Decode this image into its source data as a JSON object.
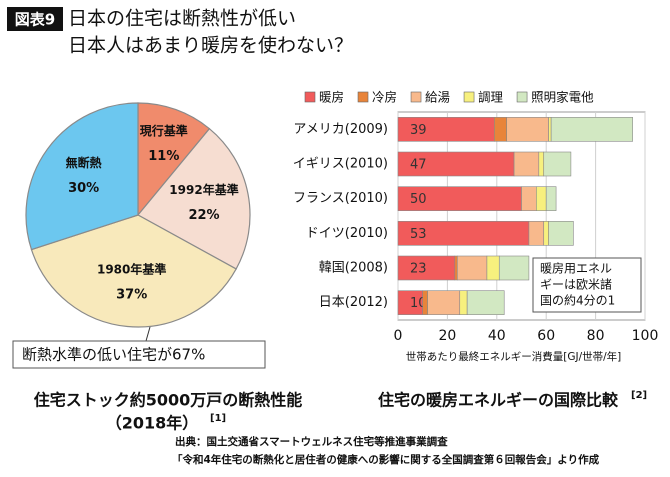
{
  "header": {
    "badge": "図表9",
    "title_lines": [
      "日本の住宅は断熱性が低い",
      "日本人はあまり暖房を使わない？"
    ]
  },
  "chart_data": [
    {
      "type": "pie",
      "categories": [
        "現行基準",
        "1992年基準",
        "1980年基準",
        "無断熱"
      ],
      "values": [
        11,
        22,
        37,
        30
      ],
      "value_labels": [
        "11%",
        "22%",
        "37%",
        "30%"
      ],
      "colors": [
        "#f08b6c",
        "#f6ddd1",
        "#f8e9bb",
        "#6cc7ef"
      ],
      "annotation": "断熱水準の低い住宅が67%",
      "caption": "住宅ストック約5000万戸の断熱性能",
      "caption_sub": "（2018年）",
      "reference": "[1]"
    },
    {
      "type": "bar",
      "orientation": "horizontal",
      "stacked": true,
      "categories": [
        "アメリカ(2009)",
        "イギリス(2010)",
        "フランス(2010)",
        "ドイツ(2010)",
        "韓国(2008)",
        "日本(2012)"
      ],
      "series": [
        {
          "name": "暖房",
          "color": "#f15b5b",
          "values": [
            39,
            47,
            50,
            53,
            23,
            10
          ]
        },
        {
          "name": "冷房",
          "color": "#e8843a",
          "values": [
            5,
            0,
            0,
            0,
            1,
            2
          ]
        },
        {
          "name": "給湯",
          "color": "#f8b98c",
          "values": [
            17,
            10,
            6,
            6,
            12,
            13
          ]
        },
        {
          "name": "調理",
          "color": "#f7f07e",
          "values": [
            1,
            2,
            4,
            2,
            5,
            3
          ]
        },
        {
          "name": "照明家電他",
          "color": "#d2e8c2",
          "values": [
            33,
            11,
            4,
            10,
            12,
            15
          ]
        }
      ],
      "xlim": [
        0,
        100
      ],
      "xticks": [
        0,
        20,
        40,
        60,
        80,
        100
      ],
      "grid": true,
      "legend": "top",
      "xlabel": "世帯あたり最終エネルギー消費量[GJ/世帯/年]",
      "annotation_lines": [
        "暖房用エネル",
        "ギーは欧米諸",
        "国の約4分の1"
      ],
      "caption": "住宅の暖房エネルギーの国際比較",
      "reference": "[2]"
    }
  ],
  "source_lines": [
    "出典：国土交通省スマートウェルネス住宅等推進事業調査",
    "「令和4年住宅の断熱化と居住者の健康への影響に関する全国調査第６回報告会」より作成"
  ]
}
